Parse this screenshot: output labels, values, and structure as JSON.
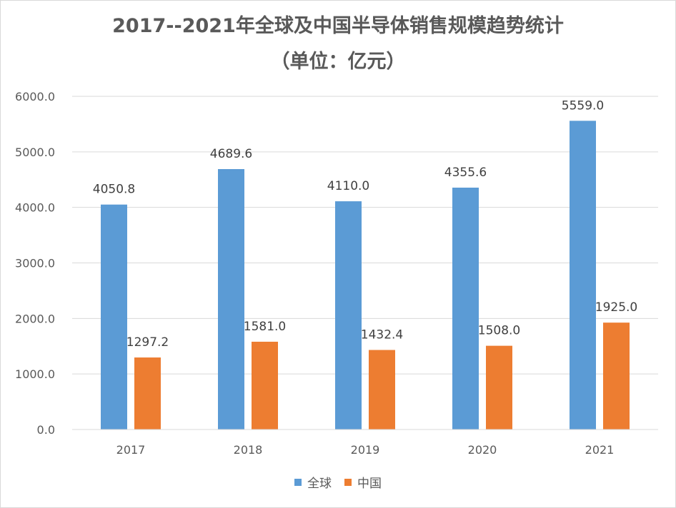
{
  "chart_data": {
    "type": "bar",
    "title": "2017--2021年全球及中国半导体销售规模趋势统计",
    "subtitle": "（单位：亿元）",
    "categories": [
      "2017",
      "2018",
      "2019",
      "2020",
      "2021"
    ],
    "series": [
      {
        "name": "全球",
        "color": "#5b9bd5",
        "values": [
          4050.8,
          4689.6,
          4110.0,
          4355.6,
          5559.0
        ],
        "labels": [
          "4050.8",
          "4689.6",
          "4110.0",
          "4355.6",
          "5559.0"
        ]
      },
      {
        "name": "中国",
        "color": "#ed7d31",
        "values": [
          1297.2,
          1581.0,
          1432.4,
          1508.0,
          1925.0
        ],
        "labels": [
          "1297.2",
          "1581.0",
          "1432.4",
          "1508.0",
          "1925.0"
        ]
      }
    ],
    "ylim": [
      0,
      6000
    ],
    "yticks": [
      0,
      1000,
      2000,
      3000,
      4000,
      5000,
      6000
    ],
    "ytick_labels": [
      "0.0",
      "1000.0",
      "2000.0",
      "3000.0",
      "4000.0",
      "5000.0",
      "6000.0"
    ],
    "grid": true,
    "legend_position": "bottom",
    "xlabel": "",
    "ylabel": ""
  }
}
